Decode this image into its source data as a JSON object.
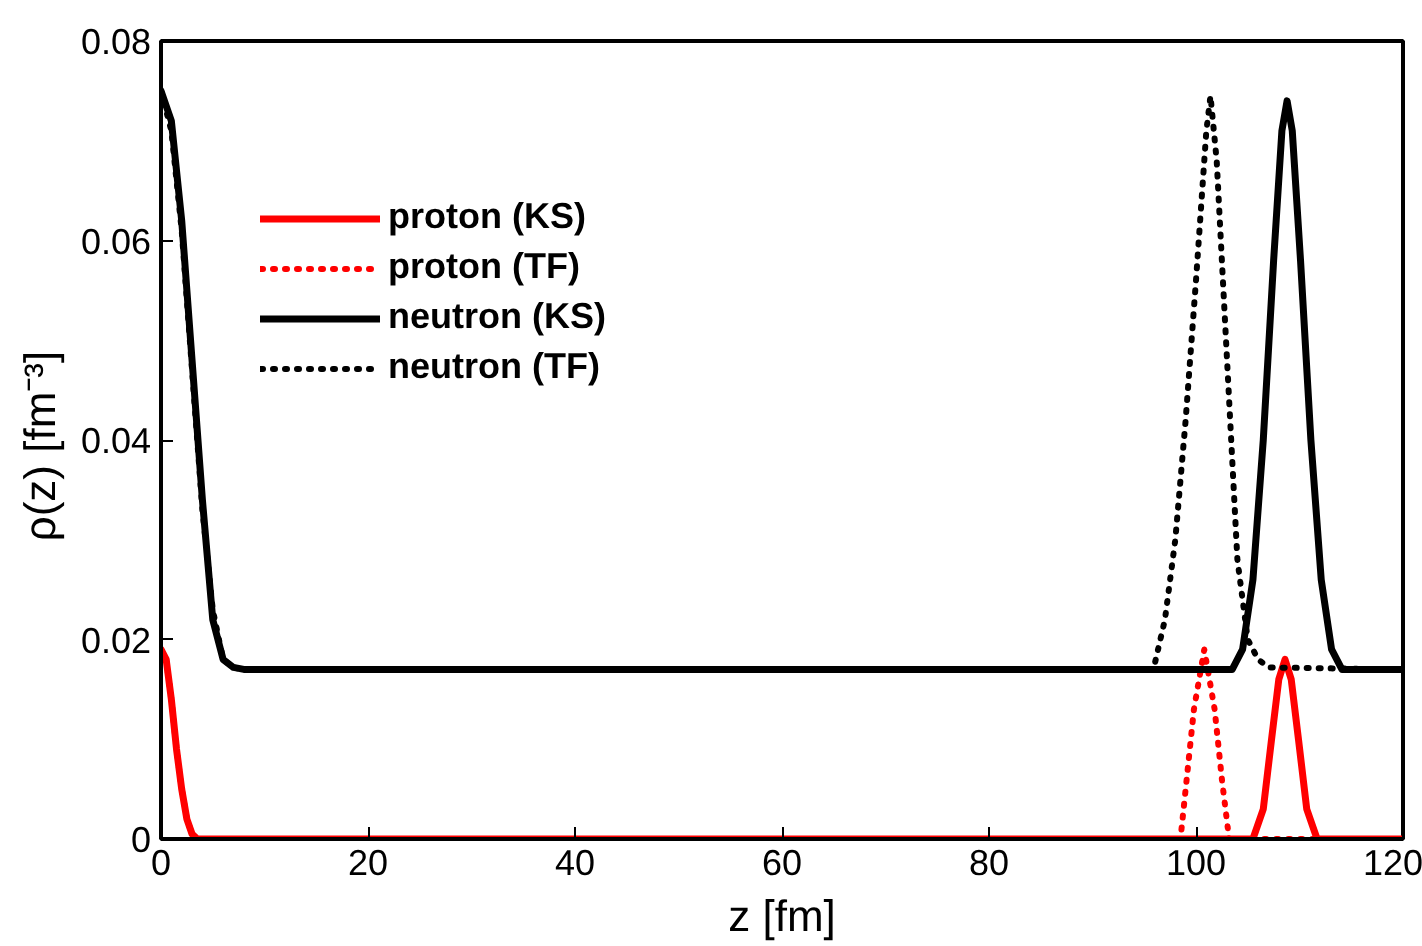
{
  "chart_data": {
    "type": "line",
    "xlabel": "z [fm]",
    "ylabel": "ρ(z)  [fm⁻³]",
    "xlim": [
      0,
      120
    ],
    "ylim": [
      0,
      0.08
    ],
    "xticks": [
      0,
      20,
      40,
      60,
      80,
      100,
      120
    ],
    "yticks": [
      0,
      {
        "value": 0.02,
        "label": "0.02"
      },
      {
        "value": 0.04,
        "label": "0.04"
      },
      {
        "value": 0.06,
        "label": "0.06"
      },
      {
        "value": 0.08,
        "label": "0.08"
      }
    ],
    "grid": false,
    "legend": "top left",
    "marker": "none",
    "series": [
      {
        "name": "proton (KS)",
        "color": "#ff0000",
        "line_style": "solid",
        "x": [
          0,
          0.5,
          1,
          1.5,
          2,
          2.5,
          3,
          3.5,
          105.5,
          106.5,
          107.3,
          108,
          108.6,
          109.2,
          109.9,
          110.7,
          111.7,
          120
        ],
        "values": [
          0.019,
          0.018,
          0.014,
          0.009,
          0.005,
          0.002,
          0.0005,
          0,
          0,
          0.003,
          0.01,
          0.016,
          0.018,
          0.016,
          0.01,
          0.003,
          0,
          0
        ]
      },
      {
        "name": "proton (TF)",
        "color": "#ff0000",
        "line_style": "dotted",
        "x": [
          0,
          0.5,
          1,
          1.5,
          2,
          2.5,
          3,
          3.5,
          98.5,
          99,
          99.8,
          100.8,
          101.8,
          102.5,
          103.2,
          120
        ],
        "values": [
          0.019,
          0.018,
          0.014,
          0.009,
          0.005,
          0.002,
          0.0005,
          0,
          0,
          0.005,
          0.013,
          0.019,
          0.013,
          0.006,
          0,
          0
        ]
      },
      {
        "name": "neutron (KS)",
        "color": "#000000",
        "line_style": "solid",
        "x": [
          0,
          1,
          2,
          3,
          4,
          5,
          6,
          7,
          8,
          103.5,
          104.5,
          105.5,
          106.5,
          107.5,
          108.3,
          108.8,
          109.3,
          110.1,
          111.1,
          112.1,
          113.1,
          114.1,
          120
        ],
        "values": [
          0.075,
          0.072,
          0.062,
          0.048,
          0.034,
          0.022,
          0.018,
          0.0172,
          0.017,
          0.017,
          0.019,
          0.026,
          0.04,
          0.058,
          0.071,
          0.074,
          0.071,
          0.058,
          0.04,
          0.026,
          0.019,
          0.017,
          0.017
        ]
      },
      {
        "name": "neutron (TF)",
        "color": "#000000",
        "line_style": "dotted",
        "x": [
          0,
          1,
          2,
          3,
          4,
          5,
          6,
          7,
          8,
          95.5,
          96,
          97,
          98,
          99,
          100,
          101,
          101.4,
          102,
          103,
          104,
          105,
          106,
          107,
          120
        ],
        "values": [
          0.075,
          0.071,
          0.061,
          0.047,
          0.033,
          0.023,
          0.018,
          0.0172,
          0.017,
          0.017,
          0.0175,
          0.022,
          0.03,
          0.042,
          0.056,
          0.071,
          0.0745,
          0.068,
          0.048,
          0.028,
          0.02,
          0.018,
          0.0172,
          0.017
        ]
      }
    ]
  }
}
